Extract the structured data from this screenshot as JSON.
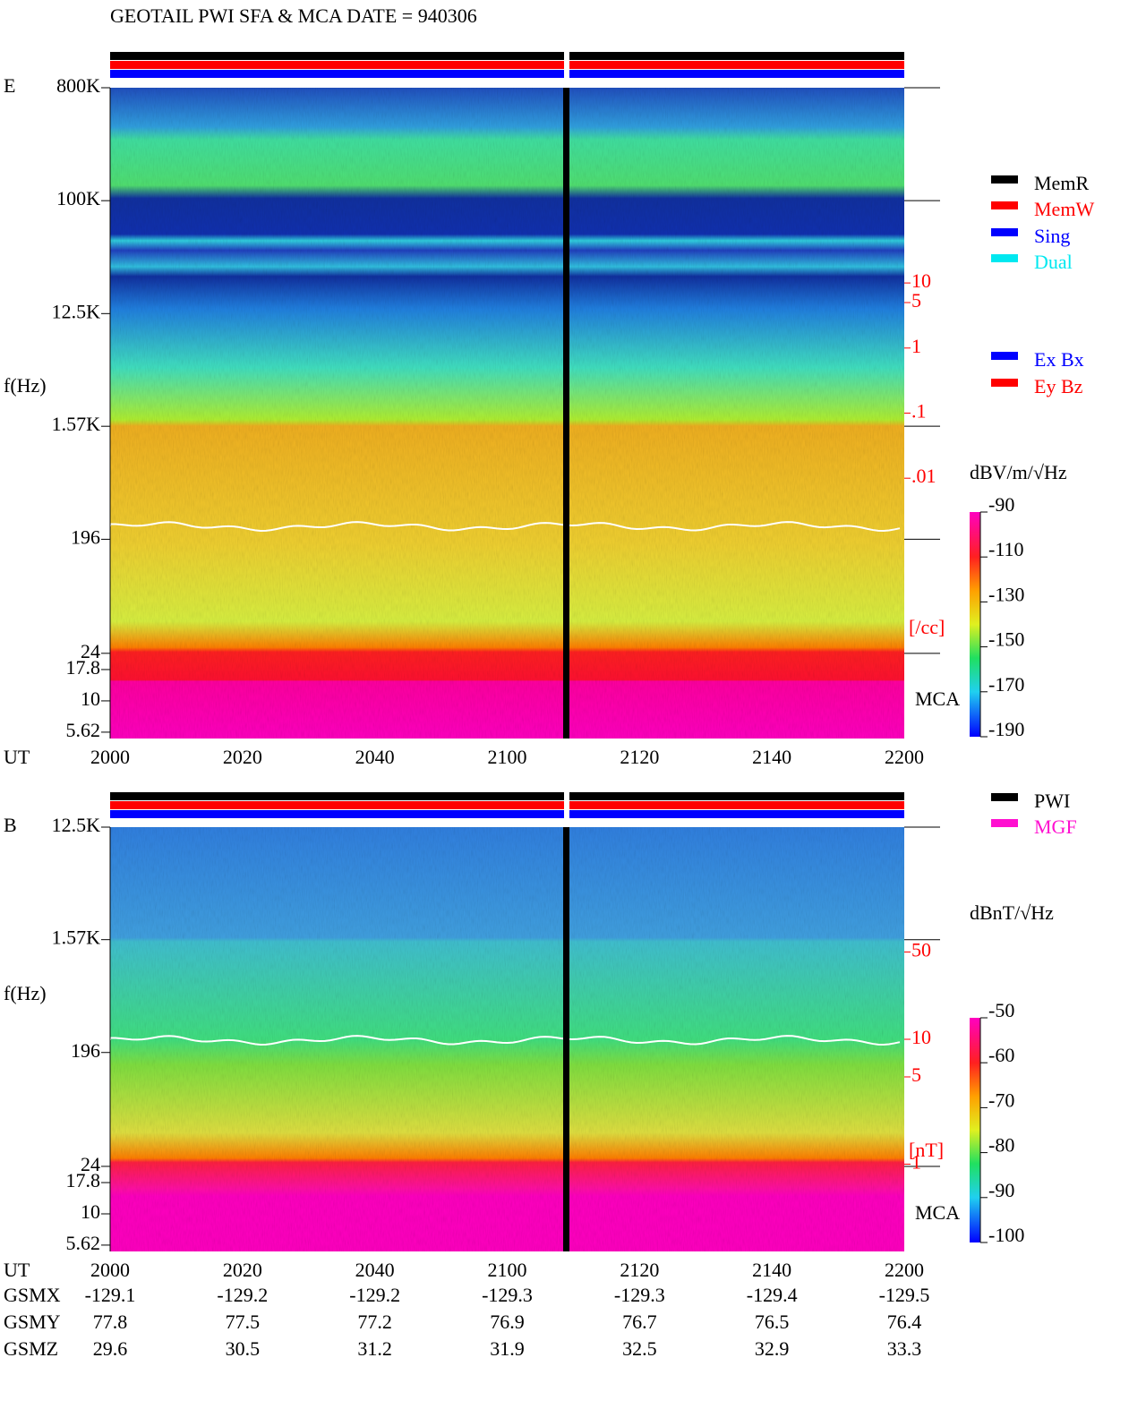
{
  "title": "GEOTAIL  PWI SFA & MCA   DATE = 940306",
  "chart_data": [
    {
      "type": "spectrogram",
      "panel": "E",
      "ylabel": "f(Hz)",
      "xlabel": "UT",
      "y_log": true,
      "ylim": [
        5,
        800000
      ],
      "yticks": [
        {
          "value": 800000,
          "label": "800K"
        },
        {
          "value": 100000,
          "label": "100K"
        },
        {
          "value": 12500,
          "label": "12.5K"
        },
        {
          "value": 1570,
          "label": "1.57K"
        },
        196,
        24,
        17.8,
        10,
        5.62
      ],
      "categories": [
        "2000",
        "2020",
        "2040",
        "2100",
        "2120",
        "2140",
        "2200"
      ],
      "y2_log": true,
      "y2lim": [
        1e-06,
        10000
      ],
      "y2ticks": [
        10,
        5,
        1,
        {
          "value": 0.1,
          "label": ".1"
        },
        {
          "value": 0.01,
          "label": ".01"
        }
      ],
      "y2label": "[/cc]",
      "y2color": "#ff0000",
      "band_label": "MCA",
      "colorbar": {
        "label": "dBV/m/√Hz",
        "lim": [
          -90,
          -190
        ],
        "ticks": [
          -90,
          -110,
          -130,
          -150,
          -170,
          -190
        ]
      },
      "legend": [
        {
          "name": "MemR",
          "color": "#000000"
        },
        {
          "name": "MemW",
          "color": "#ff0000"
        },
        {
          "name": "Sing",
          "color": "#0000ff"
        },
        {
          "name": "Dual",
          "color": "#00e8f0"
        }
      ],
      "legend2": [
        {
          "name": "Ex Bx",
          "color": "#0000ff"
        },
        {
          "name": "Ey Bz",
          "color": "#ff0000"
        }
      ]
    },
    {
      "type": "spectrogram",
      "panel": "B",
      "ylabel": "f(Hz)",
      "xlabel": "UT",
      "y_log": true,
      "ylim": [
        5,
        12500
      ],
      "yticks": [
        {
          "value": 12500,
          "label": "12.5K"
        },
        {
          "value": 1570,
          "label": "1.57K"
        },
        196,
        24,
        17.8,
        10,
        5.62
      ],
      "categories": [
        "2000",
        "2020",
        "2040",
        "2100",
        "2120",
        "2140",
        "2200"
      ],
      "y2_log": true,
      "y2lim": [
        0.2,
        500
      ],
      "y2ticks": [
        50,
        10,
        5,
        1
      ],
      "y2label": "[nT]",
      "y2color": "#ff0000",
      "band_label": "MCA",
      "colorbar": {
        "label": "dBnT/√Hz",
        "lim": [
          -50,
          -100
        ],
        "ticks": [
          -50,
          -60,
          -70,
          -80,
          -90,
          -100
        ]
      },
      "legend": [
        {
          "name": "PWI",
          "color": "#000000"
        },
        {
          "name": "MGF",
          "color": "#ff10d0"
        }
      ]
    }
  ],
  "orbit": {
    "labels": [
      "GSMX",
      "GSMY",
      "GSMZ"
    ],
    "rows": [
      [
        -129.1,
        -129.2,
        -129.2,
        -129.3,
        -129.3,
        -129.4,
        -129.5
      ],
      [
        77.8,
        77.5,
        77.2,
        76.9,
        76.7,
        76.5,
        76.4
      ],
      [
        29.6,
        30.5,
        31.2,
        31.9,
        32.5,
        32.9,
        33.3
      ]
    ]
  }
}
